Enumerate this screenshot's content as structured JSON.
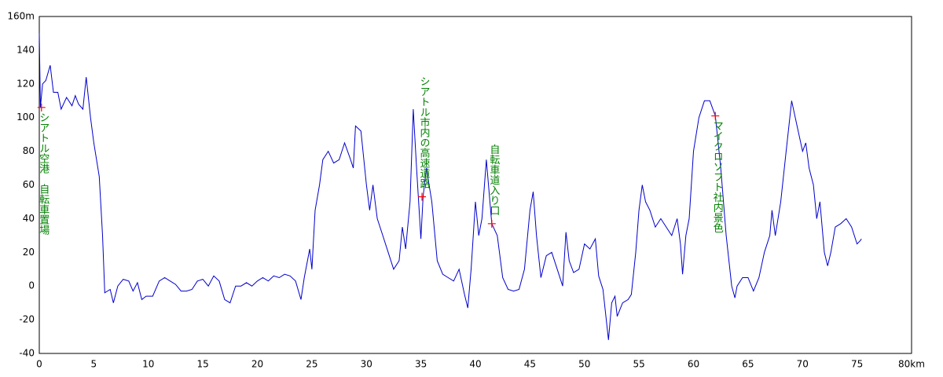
{
  "chart_data": {
    "type": "line",
    "x": [
      0,
      0.1,
      0.3,
      0.6,
      1.0,
      1.3,
      1.7,
      2.0,
      2.5,
      3.0,
      3.3,
      3.6,
      4.0,
      4.3,
      4.7,
      5.0,
      5.5,
      5.8,
      6.0,
      6.5,
      6.8,
      7.2,
      7.7,
      8.2,
      8.6,
      9.0,
      9.4,
      9.8,
      10.4,
      11.0,
      11.5,
      12.0,
      12.5,
      13.0,
      13.5,
      14.0,
      14.5,
      15.0,
      15.5,
      16.0,
      16.5,
      17.0,
      17.5,
      18.0,
      18.5,
      19.0,
      19.5,
      20.0,
      20.5,
      21.0,
      21.5,
      22.0,
      22.5,
      23.0,
      23.5,
      24.0,
      24.3,
      24.8,
      25.0,
      25.3,
      25.7,
      26.0,
      26.5,
      27.0,
      27.5,
      28.0,
      28.5,
      28.8,
      29.0,
      29.5,
      30.0,
      30.3,
      30.6,
      31.0,
      31.5,
      32.0,
      32.5,
      33.0,
      33.3,
      33.6,
      34.0,
      34.3,
      34.6,
      35.0,
      35.2,
      35.5,
      36.0,
      36.5,
      37.0,
      37.5,
      38.0,
      38.5,
      39.0,
      39.3,
      39.6,
      40.0,
      40.3,
      40.6,
      41.0,
      41.5,
      42.0,
      42.5,
      43.0,
      43.5,
      44.0,
      44.5,
      45.0,
      45.3,
      45.6,
      46.0,
      46.5,
      47.0,
      47.5,
      48.0,
      48.3,
      48.6,
      49.0,
      49.5,
      50.0,
      50.5,
      51.0,
      51.3,
      51.7,
      52.0,
      52.2,
      52.5,
      52.8,
      53.0,
      53.5,
      54.0,
      54.3,
      54.7,
      55.0,
      55.3,
      55.6,
      56.0,
      56.5,
      57.0,
      57.5,
      58.0,
      58.5,
      58.8,
      59.0,
      59.3,
      59.6,
      60.0,
      60.5,
      61.0,
      61.5,
      62.0,
      62.5,
      63.0,
      63.5,
      63.8,
      64.0,
      64.5,
      65.0,
      65.5,
      66.0,
      66.5,
      67.0,
      67.2,
      67.5,
      68.0,
      68.5,
      69.0,
      69.5,
      70.0,
      70.3,
      70.6,
      71.0,
      71.3,
      71.6,
      72.0,
      72.3,
      72.6,
      73.0,
      73.5,
      74.0,
      74.5,
      75.0,
      75.3,
      75.4
    ],
    "series": [
      {
        "color": "#0000cc",
        "values": [
          150,
          106,
          120,
          122,
          131,
          115,
          115,
          105,
          112,
          107,
          113,
          108,
          105,
          124,
          100,
          85,
          65,
          30,
          -4,
          -2,
          -10,
          0,
          4,
          3,
          -3,
          2,
          -8,
          -6,
          -6,
          3,
          5,
          3,
          1,
          -3,
          -3,
          -2,
          3,
          4,
          0,
          6,
          3,
          -8,
          -10,
          0,
          0,
          2,
          0,
          3,
          5,
          3,
          6,
          5,
          7,
          6,
          3,
          -8,
          5,
          22,
          10,
          45,
          60,
          75,
          80,
          73,
          75,
          85,
          76,
          70,
          95,
          92,
          60,
          45,
          60,
          40,
          30,
          20,
          10,
          15,
          35,
          22,
          50,
          105,
          70,
          28,
          53,
          70,
          50,
          15,
          7,
          5,
          3,
          10,
          -5,
          -13,
          10,
          50,
          30,
          40,
          75,
          37,
          30,
          5,
          -2,
          -3,
          -2,
          10,
          45,
          56,
          30,
          5,
          18,
          20,
          10,
          0,
          32,
          15,
          8,
          10,
          25,
          22,
          28,
          6,
          -2,
          -20,
          -32,
          -10,
          -6,
          -18,
          -10,
          -8,
          -5,
          20,
          45,
          60,
          50,
          45,
          35,
          40,
          35,
          30,
          40,
          25,
          7,
          30,
          40,
          80,
          100,
          110,
          110,
          101,
          70,
          30,
          0,
          -7,
          0,
          5,
          5,
          -3,
          5,
          20,
          30,
          45,
          30,
          50,
          80,
          110,
          95,
          80,
          85,
          70,
          60,
          40,
          50,
          20,
          12,
          20,
          35,
          37,
          40,
          35,
          25,
          27,
          28
        ]
      }
    ],
    "annotations": [
      {
        "x": 0.2,
        "y": 106,
        "text": "シアトル空港　自転車置場"
      },
      {
        "x": 35.1,
        "y": 53,
        "text": "シアトル市内の高速道路"
      },
      {
        "x": 41.5,
        "y": 37,
        "text": "自転車道入り口"
      },
      {
        "x": 62.0,
        "y": 101,
        "text": "マイクロソフト社内景色"
      }
    ],
    "annotation_color": "#008000",
    "marker_color": "#ff0000",
    "xlim": [
      0,
      80
    ],
    "ylim": [
      -40,
      160
    ],
    "xticks": [
      0,
      5,
      10,
      15,
      20,
      25,
      30,
      35,
      40,
      45,
      50,
      55,
      60,
      65,
      70,
      75,
      {
        "value": 80,
        "label": "80km"
      }
    ],
    "yticks": [
      -40,
      -20,
      0,
      20,
      40,
      60,
      80,
      100,
      120,
      140,
      {
        "value": 160,
        "label": "160m"
      }
    ],
    "grid": true
  }
}
